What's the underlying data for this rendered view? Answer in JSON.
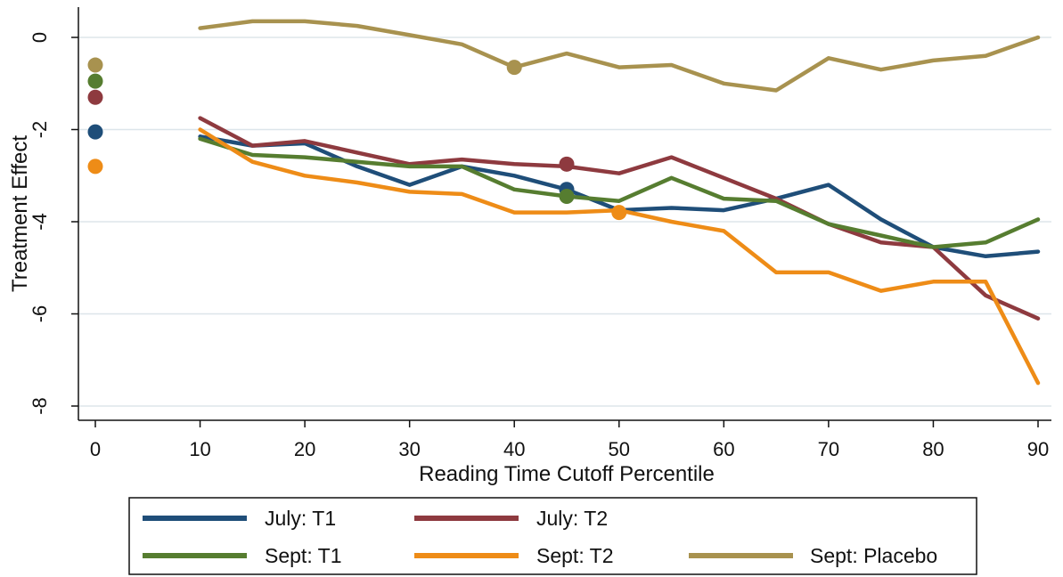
{
  "chart_data": {
    "type": "line",
    "title": "",
    "xlabel": "Reading Time Cutoff Percentile",
    "ylabel": "Treatment Effect",
    "xlim": [
      0,
      90
    ],
    "ylim": [
      -8,
      0
    ],
    "xticks": [
      0,
      10,
      20,
      30,
      40,
      50,
      60,
      70,
      80,
      90
    ],
    "yticks": [
      0,
      -2,
      -4,
      -6,
      -8
    ],
    "grid": "horizontal",
    "legend_position": "bottom",
    "x": [
      10,
      15,
      20,
      25,
      30,
      35,
      40,
      45,
      50,
      55,
      60,
      65,
      70,
      75,
      80,
      85,
      90
    ],
    "series": [
      {
        "name": "July: T1",
        "color": "#1f4e79",
        "values": [
          -2.15,
          -2.35,
          -2.3,
          -2.8,
          -3.2,
          -2.8,
          -3.0,
          -3.3,
          -3.75,
          -3.7,
          -3.75,
          -3.5,
          -3.2,
          -3.95,
          -4.55,
          -4.75,
          -4.65
        ],
        "markers": [
          {
            "x": 0,
            "y": -2.05
          },
          {
            "x": 45,
            "y": -3.3
          }
        ]
      },
      {
        "name": "July: T2",
        "color": "#8e3a3f",
        "values": [
          -1.75,
          -2.35,
          -2.25,
          -2.5,
          -2.75,
          -2.65,
          -2.75,
          -2.8,
          -2.95,
          -2.6,
          -3.05,
          -3.5,
          -4.05,
          -4.45,
          -4.55,
          -5.6,
          -6.1
        ],
        "markers": [
          {
            "x": 0,
            "y": -1.3
          },
          {
            "x": 45,
            "y": -2.75
          }
        ]
      },
      {
        "name": "Sept: T1",
        "color": "#567d30",
        "values": [
          -2.2,
          -2.55,
          -2.6,
          -2.7,
          -2.8,
          -2.8,
          -3.3,
          -3.45,
          -3.55,
          -3.05,
          -3.5,
          -3.55,
          -4.05,
          -4.3,
          -4.55,
          -4.45,
          -3.95
        ],
        "markers": [
          {
            "x": 0,
            "y": -0.95
          },
          {
            "x": 45,
            "y": -3.45
          }
        ]
      },
      {
        "name": "Sept: T2",
        "color": "#ee8c17",
        "values": [
          -2.0,
          -2.7,
          -3.0,
          -3.15,
          -3.35,
          -3.4,
          -3.8,
          -3.8,
          -3.75,
          -4.0,
          -4.2,
          -5.1,
          -5.1,
          -5.5,
          -5.3,
          -5.3,
          -7.5
        ],
        "markers": [
          {
            "x": 0,
            "y": -2.8
          },
          {
            "x": 50,
            "y": -3.8
          }
        ]
      },
      {
        "name": "Sept: Placebo",
        "color": "#a8924f",
        "values": [
          0.2,
          0.35,
          0.35,
          0.25,
          0.05,
          -0.15,
          -0.65,
          -0.35,
          -0.65,
          -0.6,
          -1.0,
          -1.15,
          -0.45,
          -0.7,
          -0.5,
          -0.4,
          0.0
        ],
        "markers": [
          {
            "x": 0,
            "y": -0.6
          },
          {
            "x": 40,
            "y": -0.65
          }
        ]
      }
    ]
  }
}
